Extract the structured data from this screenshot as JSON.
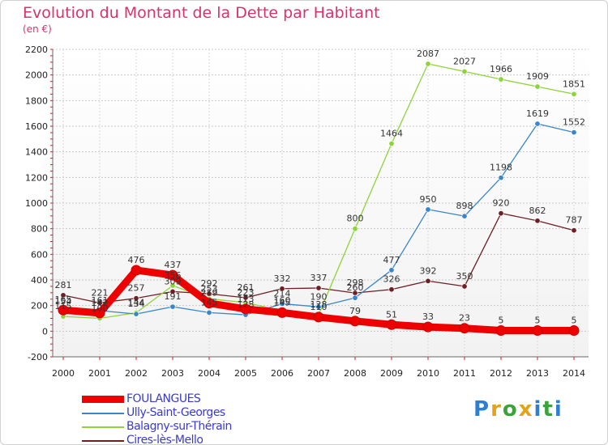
{
  "header": {
    "title": "Evolution du Montant de la Dette par Habitant",
    "unit": "(en €)"
  },
  "logo": {
    "letters": [
      "P",
      "r",
      "o",
      "x",
      "i",
      "t",
      "i"
    ],
    "colors": [
      "#2f7fd0",
      "#e3a21a",
      "#3aa43a",
      "#e3a21a",
      "#2f7fd0",
      "#3aa43a",
      "#2f7fd0"
    ]
  },
  "chart_data": {
    "type": "line",
    "x": [
      "2000",
      "2001",
      "2002",
      "2003",
      "2004",
      "2005",
      "2006",
      "2007",
      "2008",
      "2009",
      "2010",
      "2011",
      "2012",
      "2013",
      "2014"
    ],
    "ylim": [
      -200,
      2200
    ],
    "yticks": [
      -200,
      0,
      200,
      400,
      600,
      800,
      1000,
      1200,
      1400,
      1600,
      1800,
      2000,
      2200
    ],
    "grid": true,
    "legend_position": "bottom-left",
    "series": [
      {
        "name": "FOULANGUES",
        "color": "#ee0000",
        "values": [
          165,
          142,
          476,
          437,
          219,
          173,
          145,
          110,
          79,
          51,
          33,
          23,
          5,
          5,
          5
        ],
        "labels": [
          "165",
          "142",
          "476",
          "437",
          "219",
          "173",
          "145",
          "110",
          "79",
          "51",
          "33",
          "23",
          "5",
          "5",
          "5"
        ]
      },
      {
        "name": "Ully-Saint-Georges",
        "color": "#3a86c8",
        "values": [
          154,
          161,
          134,
          191,
          145,
          128,
          214,
          190,
          260,
          477,
          950,
          898,
          1198,
          1619,
          1552
        ],
        "labels": [
          "154",
          "161",
          "134",
          "191",
          "145",
          "128",
          "214",
          "190",
          "260",
          "477",
          "950",
          "898",
          "1198",
          "1619",
          "1552"
        ]
      },
      {
        "name": "Balagny-sur-Thérain",
        "color": "#8ed33a",
        "values": [
          115,
          100,
          144,
          356,
          253,
          223,
          160,
          128,
          800,
          1464,
          2087,
          2027,
          1966,
          1909,
          1851
        ],
        "labels": [
          "115",
          "100",
          "144",
          "356",
          "253",
          "223",
          "160",
          "128",
          "800",
          "1464",
          "2087",
          "2027",
          "1966",
          "1909",
          "1851"
        ]
      },
      {
        "name": "Cires-lès-Mello",
        "color": "#6e1f24",
        "values": [
          281,
          221,
          257,
          309,
          292,
          261,
          332,
          337,
          298,
          326,
          392,
          350,
          920,
          862,
          787
        ],
        "labels": [
          "281",
          "221",
          "257",
          "309",
          "292",
          "261",
          "332",
          "337",
          "298",
          "326",
          "392",
          "350",
          "920",
          "862",
          "787"
        ]
      }
    ]
  }
}
